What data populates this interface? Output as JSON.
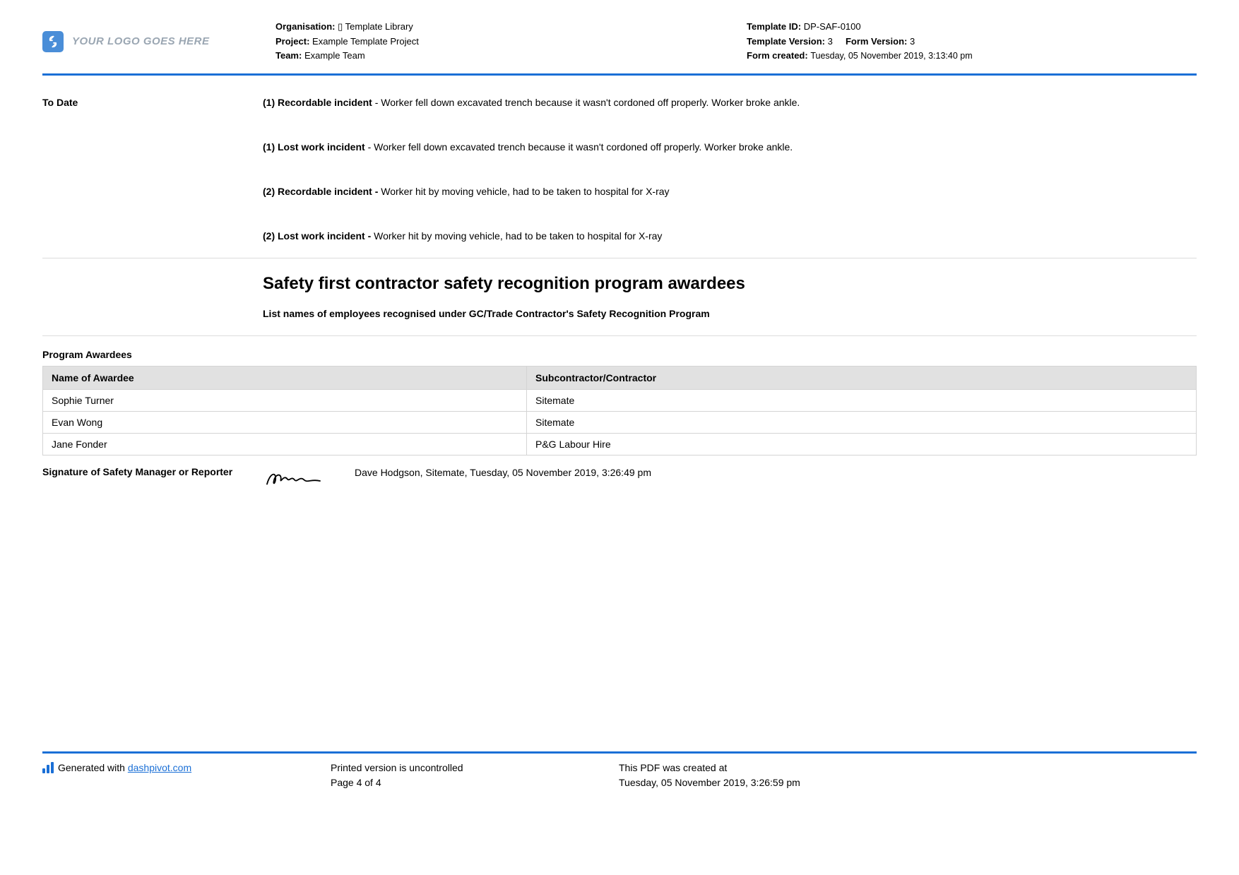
{
  "header": {
    "logo_text": "YOUR LOGO GOES HERE",
    "org_label": "Organisation:",
    "org_value": "▯ Template Library",
    "project_label": "Project:",
    "project_value": "Example Template Project",
    "team_label": "Team:",
    "team_value": "Example Team",
    "template_id_label": "Template ID:",
    "template_id_value": "DP-SAF-0100",
    "template_version_label": "Template Version:",
    "template_version_value": "3",
    "form_version_label": "Form Version:",
    "form_version_value": "3",
    "form_created_label": "Form created:",
    "form_created_value": "Tuesday, 05 November 2019, 3:13:40 pm"
  },
  "to_date": {
    "label": "To Date",
    "incidents": [
      {
        "title": "(1) Recordable incident",
        "sep": " - ",
        "desc": "Worker fell down excavated trench because it wasn't cordoned off properly. Worker broke ankle."
      },
      {
        "title": "(1) Lost work incident",
        "sep": " - ",
        "desc": "Worker fell down excavated trench because it wasn't cordoned off properly. Worker broke ankle."
      },
      {
        "title": "(2) Recordable incident -",
        "sep": " ",
        "desc": "Worker hit by moving vehicle, had to be taken to hospital for X-ray"
      },
      {
        "title": "(2) Lost work incident -",
        "sep": " ",
        "desc": "Worker hit by moving vehicle, had to be taken to hospital for X-ray"
      }
    ]
  },
  "section": {
    "title": "Safety first contractor safety recognition program awardees",
    "subtitle": "List names of employees recognised under GC/Trade Contractor's Safety Recognition Program"
  },
  "table": {
    "caption": "Program Awardees",
    "columns": [
      "Name of Awardee",
      "Subcontractor/Contractor"
    ],
    "rows": [
      [
        "Sophie Turner",
        "Sitemate"
      ],
      [
        "Evan Wong",
        "Sitemate"
      ],
      [
        "Jane Fonder",
        "P&G Labour Hire"
      ]
    ]
  },
  "signature": {
    "label": "Signature of Safety Manager or Reporter",
    "text": "Dave Hodgson, Sitemate, Tuesday, 05 November 2019, 3:26:49 pm"
  },
  "footer": {
    "generated_prefix": "Generated with ",
    "generated_link": "dashpivot.com",
    "uncontrolled": "Printed version is uncontrolled",
    "page": "Page 4 of 4",
    "created_label": "This PDF was created at",
    "created_value": "Tuesday, 05 November 2019, 3:26:59 pm"
  },
  "colors": {
    "accent": "#1a6fd6",
    "logo_bg": "#4a8ed8",
    "logo_fg": "#ffffff",
    "logo_text": "#9aa6b2",
    "border": "#d4d4d4",
    "th_bg": "#e1e1e1",
    "text": "#000000"
  }
}
